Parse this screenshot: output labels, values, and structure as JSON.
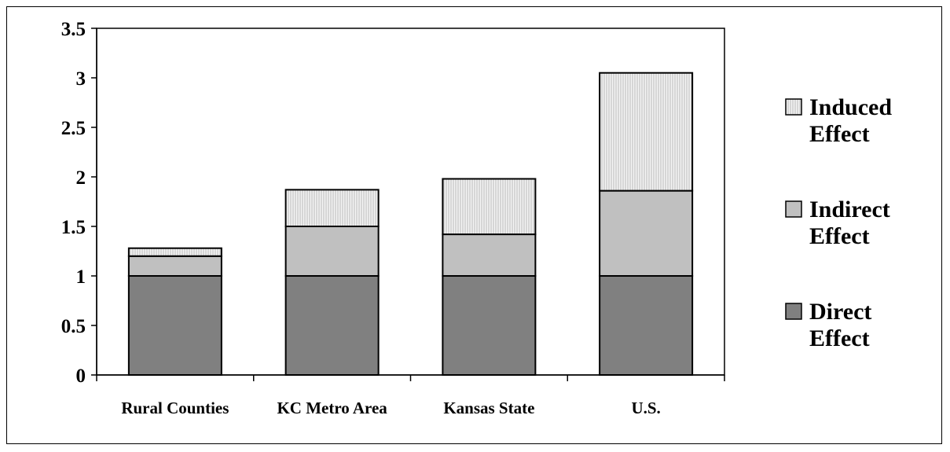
{
  "chart_data": {
    "type": "bar",
    "stacked": true,
    "title": "",
    "xlabel": "",
    "ylabel": "",
    "categories": [
      "Rural Counties",
      "KC Metro Area",
      "Kansas State",
      "U.S."
    ],
    "ylim": [
      0,
      3.5
    ],
    "yticks": [
      "0",
      "0.5",
      "1",
      "1.5",
      "2",
      "2.5",
      "3",
      "3.5"
    ],
    "grid": false,
    "legend_position": "right",
    "series": [
      {
        "name": "Direct Effect",
        "values": [
          1.0,
          1.0,
          1.0,
          1.0
        ],
        "color": "#808080",
        "pattern": "solid"
      },
      {
        "name": "Indirect Effect",
        "values": [
          0.2,
          0.5,
          0.42,
          0.86
        ],
        "color": "#c0c0c0",
        "pattern": "solid"
      },
      {
        "name": "Induced Effect",
        "values": [
          0.08,
          0.37,
          0.56,
          1.19
        ],
        "color": "#ececec",
        "pattern": "vertical-hatch"
      }
    ],
    "legend": [
      {
        "line1": "Induced",
        "line2": "Effect",
        "series": 2
      },
      {
        "line1": "Indirect",
        "line2": "Effect",
        "series": 1
      },
      {
        "line1": "Direct",
        "line2": "Effect",
        "series": 0
      }
    ]
  }
}
